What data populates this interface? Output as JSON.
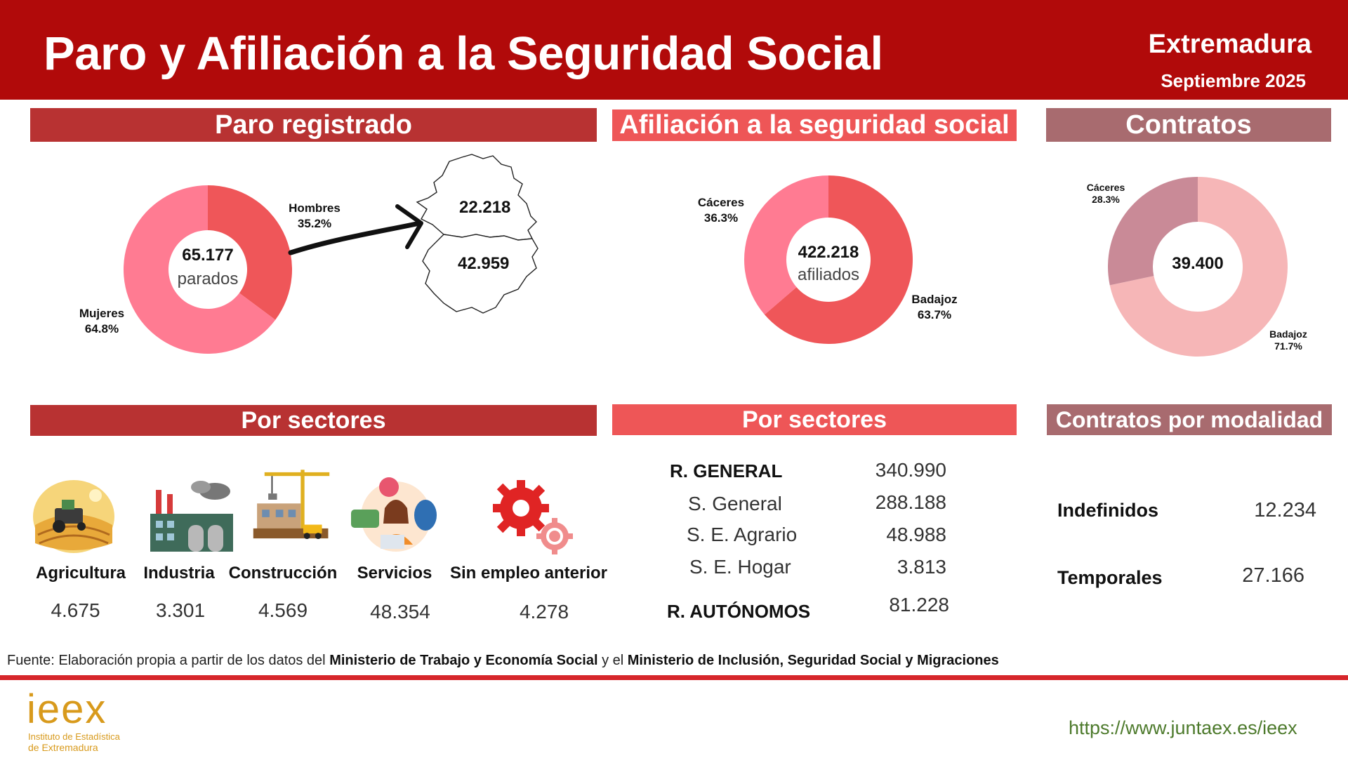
{
  "header": {
    "title": "Paro y Afiliación a la Seguridad Social",
    "region": "Extremadura",
    "date": "Septiembre 2025",
    "bg_color": "#b10a0a"
  },
  "sections": {
    "paro": "Paro registrado",
    "afiliacion": "Afiliación a la seguridad social",
    "contratos": "Contratos",
    "sectores_paro": "Por sectores",
    "sectores_afil": "Por sectores",
    "modalidad": "Contratos por modalidad"
  },
  "paro_map": {
    "caceres_value": "22.218",
    "badajoz_value": "42.959"
  },
  "chart_data": [
    {
      "type": "pie",
      "center_value": "65.177",
      "center_label": "parados",
      "categories": [
        "Hombres",
        "Mujeres"
      ],
      "values": [
        35.2,
        64.8
      ],
      "labels": [
        "35.2%",
        "64.8%"
      ],
      "colors": [
        "#ef5659",
        "#ff7b92"
      ]
    },
    {
      "type": "pie",
      "center_value": "422.218",
      "center_label": "afiliados",
      "categories": [
        "Badajoz",
        "Cáceres"
      ],
      "values": [
        63.7,
        36.3
      ],
      "labels": [
        "63.7%",
        "36.3%"
      ],
      "colors": [
        "#ef5659",
        "#ff7b92"
      ]
    },
    {
      "type": "pie",
      "center_value": "39.400",
      "categories": [
        "Badajoz",
        "Cáceres"
      ],
      "values": [
        71.7,
        28.3
      ],
      "labels": [
        "71.7%",
        "28.3%"
      ],
      "colors": [
        "#f6b6b7",
        "#c98a97"
      ]
    },
    {
      "type": "table",
      "title": "Por sectores",
      "categories": [
        "Agricultura",
        "Industria",
        "Construcción",
        "Servicios",
        "Sin empleo anterior"
      ],
      "values": [
        "4.675",
        "3.301",
        "4.569",
        "48.354",
        "4.278"
      ]
    },
    {
      "type": "table",
      "title": "Por sectores",
      "rows": [
        {
          "label": "R. GENERAL",
          "value": "340.990"
        },
        {
          "label": "S. General",
          "value": "288.188"
        },
        {
          "label": "S. E. Agrario",
          "value": "48.988"
        },
        {
          "label": "S. E. Hogar",
          "value": "3.813"
        },
        {
          "label": "R. AUTÓNOMOS",
          "value": "81.228"
        }
      ]
    },
    {
      "type": "table",
      "title": "Contratos por modalidad",
      "rows": [
        {
          "label": "Indefinidos",
          "value": "12.234"
        },
        {
          "label": "Temporales",
          "value": "27.166"
        }
      ]
    }
  ],
  "footer": {
    "source_prefix": "Fuente: Elaboración propia a partir de los datos del",
    "source_org1": "Ministerio de Trabajo y Economía Social",
    "source_mid": "y el",
    "source_org2": "Ministerio de Inclusión, Seguridad Social y Migraciones",
    "logo_text": "ieex",
    "logo_sub1": "Instituto de Estadística",
    "logo_sub2": "de Extremadura",
    "url": "https://www.juntaex.es/ieex"
  }
}
